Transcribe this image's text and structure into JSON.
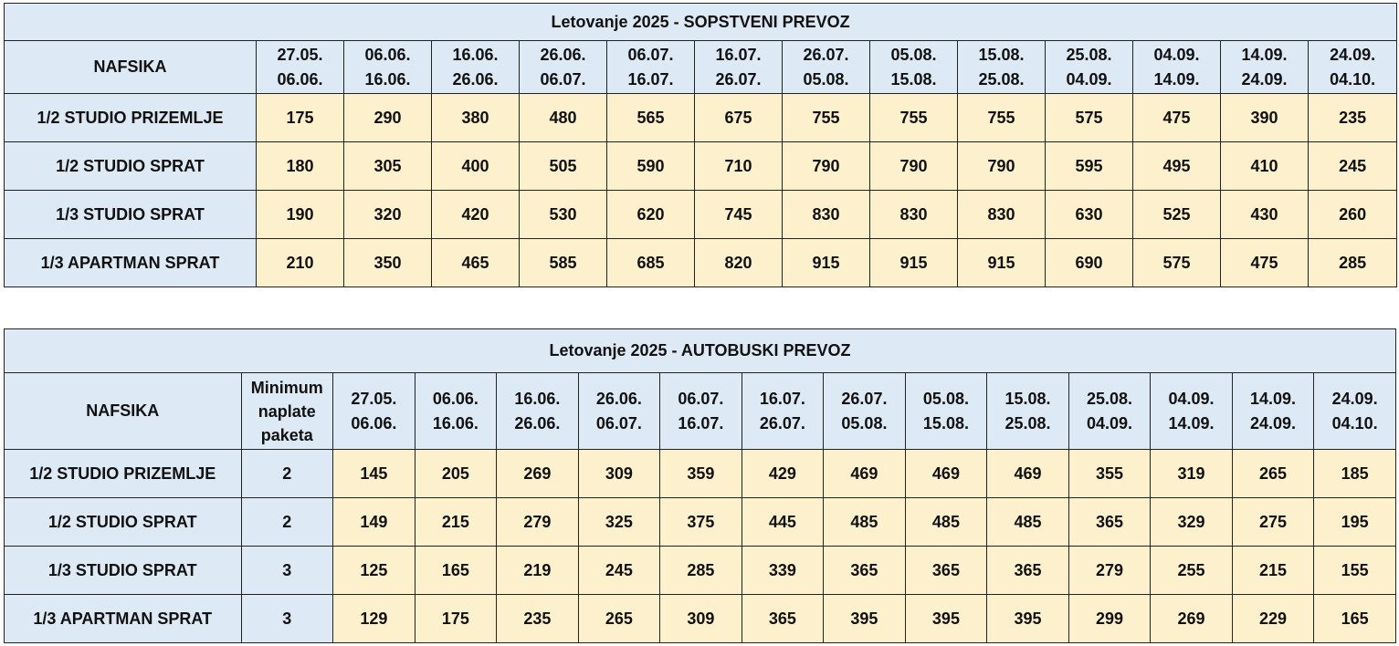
{
  "periods": [
    {
      "from": "27.05.",
      "to": "06.06."
    },
    {
      "from": "06.06.",
      "to": "16.06."
    },
    {
      "from": "16.06.",
      "to": "26.06."
    },
    {
      "from": "26.06.",
      "to": "06.07."
    },
    {
      "from": "06.07.",
      "to": "16.07."
    },
    {
      "from": "16.07.",
      "to": "26.07."
    },
    {
      "from": "26.07.",
      "to": "05.08."
    },
    {
      "from": "05.08.",
      "to": "15.08."
    },
    {
      "from": "15.08.",
      "to": "25.08."
    },
    {
      "from": "25.08.",
      "to": "04.09."
    },
    {
      "from": "04.09.",
      "to": "14.09."
    },
    {
      "from": "14.09.",
      "to": "24.09."
    },
    {
      "from": "24.09.",
      "to": "04.10."
    }
  ],
  "own_transport": {
    "title": "Letovanje 2025 - SOPSTVENI PREVOZ",
    "hotel": "NAFSIKA",
    "rows": [
      {
        "label": "1/2 STUDIO PRIZEMLJE",
        "prices": [
          "175",
          "290",
          "380",
          "480",
          "565",
          "675",
          "755",
          "755",
          "755",
          "575",
          "475",
          "390",
          "235"
        ]
      },
      {
        "label": "1/2 STUDIO SPRAT",
        "prices": [
          "180",
          "305",
          "400",
          "505",
          "590",
          "710",
          "790",
          "790",
          "790",
          "595",
          "495",
          "410",
          "245"
        ]
      },
      {
        "label": "1/3 STUDIO SPRAT",
        "prices": [
          "190",
          "320",
          "420",
          "530",
          "620",
          "745",
          "830",
          "830",
          "830",
          "630",
          "525",
          "430",
          "260"
        ]
      },
      {
        "label": "1/3 APARTMAN SPRAT",
        "prices": [
          "210",
          "350",
          "465",
          "585",
          "685",
          "820",
          "915",
          "915",
          "915",
          "690",
          "575",
          "475",
          "285"
        ]
      }
    ]
  },
  "bus_transport": {
    "title": "Letovanje 2025 - AUTOBUSKI PREVOZ",
    "hotel": "NAFSIKA",
    "min_header": [
      "Minimum",
      "naplate",
      "paketa"
    ],
    "rows": [
      {
        "label": "1/2 STUDIO PRIZEMLJE",
        "min": "2",
        "prices": [
          "145",
          "205",
          "269",
          "309",
          "359",
          "429",
          "469",
          "469",
          "469",
          "355",
          "319",
          "265",
          "185"
        ]
      },
      {
        "label": "1/2 STUDIO SPRAT",
        "min": "2",
        "prices": [
          "149",
          "215",
          "279",
          "325",
          "375",
          "445",
          "485",
          "485",
          "485",
          "365",
          "329",
          "275",
          "195"
        ]
      },
      {
        "label": "1/3 STUDIO SPRAT",
        "min": "3",
        "prices": [
          "125",
          "165",
          "219",
          "245",
          "285",
          "339",
          "365",
          "365",
          "365",
          "279",
          "255",
          "215",
          "155"
        ]
      },
      {
        "label": "1/3 APARTMAN SPRAT",
        "min": "3",
        "prices": [
          "129",
          "175",
          "235",
          "265",
          "309",
          "365",
          "395",
          "395",
          "395",
          "299",
          "269",
          "229",
          "165"
        ]
      }
    ]
  }
}
